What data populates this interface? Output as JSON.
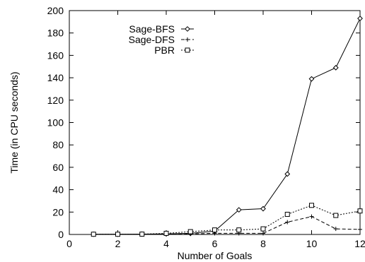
{
  "chart_data": {
    "type": "line",
    "title": "",
    "xlabel": "Number of Goals",
    "ylabel": "Time (in CPU seconds)",
    "xlim": [
      0,
      12
    ],
    "ylim": [
      0,
      200
    ],
    "xticks": [
      0,
      2,
      4,
      6,
      8,
      10,
      12
    ],
    "yticks": [
      0,
      20,
      40,
      60,
      80,
      100,
      120,
      140,
      160,
      180,
      200
    ],
    "grid": false,
    "legend_position": "top-center",
    "series": [
      {
        "name": "Sage-BFS",
        "line_style": "solid",
        "marker": "diamond",
        "color": "#000000",
        "x": [
          1,
          2,
          3,
          4,
          5,
          6,
          7,
          8,
          9,
          10,
          11,
          12
        ],
        "y": [
          0.2,
          0.2,
          0.3,
          0.5,
          1,
          3,
          22,
          23,
          54,
          139,
          149,
          193
        ]
      },
      {
        "name": "Sage-DFS",
        "line_style": "dashed",
        "marker": "plus",
        "color": "#000000",
        "x": [
          1,
          2,
          3,
          4,
          5,
          6,
          7,
          8,
          9,
          10,
          11,
          12
        ],
        "y": [
          0.1,
          0.1,
          0.1,
          0.2,
          0.5,
          1,
          1,
          1,
          11,
          16,
          5,
          4.5
        ]
      },
      {
        "name": "PBR",
        "line_style": "dotted",
        "marker": "square",
        "color": "#000000",
        "x": [
          1,
          2,
          3,
          4,
          5,
          6,
          7,
          8,
          9,
          10,
          11,
          12
        ],
        "y": [
          0.2,
          0.2,
          0.3,
          1,
          2.5,
          4,
          4,
          5,
          18,
          26,
          17,
          21
        ]
      }
    ]
  }
}
